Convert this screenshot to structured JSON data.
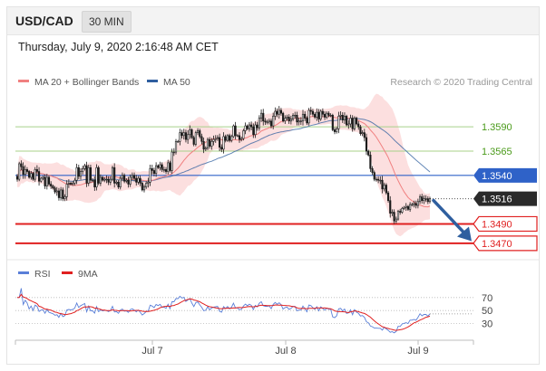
{
  "header": {
    "symbol": "USD/CAD",
    "interval": "30 MIN"
  },
  "datetime": "Thursday, July 9, 2020 2:16:48 AM CET",
  "legend": [
    {
      "label": "MA 20 + Bollinger Bands",
      "color": "#f08080"
    },
    {
      "label": "MA 50",
      "color": "#2f5f9f"
    }
  ],
  "credit": "Research © 2020 Trading Central",
  "levels": [
    {
      "value": 1.359,
      "label": "1.3590",
      "kind": "green",
      "color": "#4a9a1a",
      "line": "#a8d08a"
    },
    {
      "value": 1.3565,
      "label": "1.3565",
      "kind": "green",
      "color": "#4a9a1a",
      "line": "#a8d08a"
    },
    {
      "value": 1.354,
      "label": "1.3540",
      "kind": "blue",
      "color": "#2f62c8"
    },
    {
      "value": 1.3516,
      "label": "1.3516",
      "kind": "current",
      "color": "#2a2a2a"
    },
    {
      "value": 1.349,
      "label": "1.3490",
      "kind": "red",
      "color": "#e02020"
    },
    {
      "value": 1.347,
      "label": "1.3470",
      "kind": "red",
      "color": "#e02020"
    }
  ],
  "rsi_legend": [
    {
      "label": "RSI",
      "color": "#5a7fd8"
    },
    {
      "label": "9MA",
      "color": "#e02020"
    }
  ],
  "rsi_levels": [
    "70",
    "50",
    "30"
  ],
  "x_labels": [
    "Jul 7",
    "Jul 8",
    "Jul 9"
  ],
  "chart_data": {
    "type": "candlestick",
    "ylim": [
      1.3455,
      1.362
    ],
    "close": [
      1.3536,
      1.3552,
      1.3549,
      1.3541,
      1.3546,
      1.3544,
      1.3538,
      1.3542,
      1.3536,
      1.3546,
      1.3544,
      1.3534,
      1.3537,
      1.3538,
      1.3529,
      1.3538,
      1.3531,
      1.3529,
      1.3527,
      1.3523,
      1.3524,
      1.3517,
      1.3525,
      1.3516,
      1.3518,
      1.3531,
      1.3532,
      1.3531,
      1.3532,
      1.3535,
      1.3548,
      1.3539,
      1.3544,
      1.3547,
      1.355,
      1.3532,
      1.3548,
      1.3535,
      1.3535,
      1.3528,
      1.3548,
      1.3532,
      1.3538,
      1.3535,
      1.3536,
      1.3536,
      1.3533,
      1.3536,
      1.3548,
      1.3532,
      1.3533,
      1.3528,
      1.3537,
      1.354,
      1.3534,
      1.3535,
      1.3531,
      1.3538,
      1.354,
      1.3537,
      1.3533,
      1.3537,
      1.3532,
      1.3525,
      1.3528,
      1.3532,
      1.3533,
      1.3547,
      1.3545,
      1.3542,
      1.355,
      1.3548,
      1.3551,
      1.3546,
      1.3546,
      1.3544,
      1.3553,
      1.3545,
      1.3564,
      1.3564,
      1.3575,
      1.3575,
      1.3584,
      1.3581,
      1.3584,
      1.3577,
      1.3582,
      1.3587,
      1.3579,
      1.3572,
      1.3584,
      1.3586,
      1.358,
      1.3575,
      1.3567,
      1.3568,
      1.3577,
      1.357,
      1.3575,
      1.3577,
      1.3578,
      1.3579,
      1.3569,
      1.3567,
      1.358,
      1.3576,
      1.3581,
      1.3576,
      1.358,
      1.3591,
      1.3581,
      1.3581,
      1.3577,
      1.3578,
      1.3586,
      1.3591,
      1.3588,
      1.3592,
      1.359,
      1.3582,
      1.3592,
      1.3589,
      1.3599,
      1.3604,
      1.3596,
      1.3595,
      1.3595,
      1.3596,
      1.3591,
      1.3601,
      1.3606,
      1.3603,
      1.3607,
      1.3604,
      1.3596,
      1.3599,
      1.36,
      1.3596,
      1.3598,
      1.3602,
      1.3602,
      1.3595,
      1.3596,
      1.3596,
      1.3603,
      1.3599,
      1.3594,
      1.3607,
      1.3606,
      1.3603,
      1.36,
      1.3605,
      1.3598,
      1.3606,
      1.3603,
      1.36,
      1.3604,
      1.3602,
      1.3602,
      1.3587,
      1.3585,
      1.3588,
      1.3601,
      1.3602,
      1.3597,
      1.3601,
      1.3592,
      1.3593,
      1.3599,
      1.3588,
      1.3599,
      1.3593,
      1.359,
      1.3583,
      1.3584,
      1.3579,
      1.3565,
      1.3561,
      1.3547,
      1.3543,
      1.3536,
      1.3536,
      1.3535,
      1.3535,
      1.3526,
      1.353,
      1.3522,
      1.3514,
      1.3501,
      1.3502,
      1.3493,
      1.3495,
      1.3503,
      1.3502,
      1.3506,
      1.3507,
      1.3508,
      1.3505,
      1.351,
      1.351,
      1.3511,
      1.3509,
      1.3513,
      1.3518,
      1.3514,
      1.3516,
      1.3516,
      1.3513,
      1.3516
    ],
    "spread": [
      0.0005,
      0.0004,
      0.0007,
      0.0009,
      0.0009,
      0.0005,
      0.0003,
      0.0005,
      0.0003,
      0.0005,
      0.0009,
      0.0009,
      0.0003,
      0.0004,
      0.0006,
      0.0007,
      0.0004,
      0.0006,
      0.0003,
      0.0004,
      0.0008,
      0.0006,
      0.0006,
      0.0005,
      0.0005,
      0.0008,
      0.0008,
      0.0003,
      0.0004,
      0.0005,
      0.0008,
      0.0006,
      0.0007,
      0.0006,
      0.0004,
      0.0008,
      0.0006,
      0.0006,
      0.0004,
      0.0008,
      0.0007,
      0.0004,
      0.0006,
      0.0003,
      0.0004,
      0.0008,
      0.0006,
      0.0006,
      0.0004,
      0.0009,
      0.0004,
      0.0004,
      0.0005,
      0.0006,
      0.0004,
      0.0004,
      0.0007,
      0.0006,
      0.0006,
      0.0006,
      0.0007,
      0.0005,
      0.0006,
      0.0003,
      0.0005,
      0.0004,
      0.0009,
      0.0008,
      0.0008,
      0.0006,
      0.0007,
      0.0003,
      0.0006,
      0.0005,
      0.0006,
      0.0005,
      0.0006,
      0.0004,
      0.0007,
      0.0008,
      0.0005,
      0.0003,
      0.0008,
      0.0006,
      0.0008,
      0.0006,
      0.0009,
      0.0009,
      0.0003,
      0.0004,
      0.0004,
      0.0005,
      0.0004,
      0.0006,
      0.0008,
      0.0004,
      0.0004,
      0.0005,
      0.0007,
      0.0008,
      0.0007,
      0.0005,
      0.0008,
      0.0006,
      0.0009,
      0.0004,
      0.0003,
      0.0004,
      0.0004,
      0.0003,
      0.0008,
      0.0003,
      0.0007,
      0.0004,
      0.0004,
      0.0007,
      0.0003,
      0.0006,
      0.0007,
      0.0007,
      0.0007,
      0.0006,
      0.0006,
      0.0008,
      0.0009,
      0.0006,
      0.0005,
      0.0005,
      0.0005,
      0.0007,
      0.0008,
      0.0006,
      0.0009,
      0.0005,
      0.0003,
      0.0006,
      0.0005,
      0.0006,
      0.0007,
      0.0004,
      0.0007,
      0.0007,
      0.0007,
      0.0008,
      0.0009,
      0.0006,
      0.0004,
      0.0005,
      0.0007,
      0.0005,
      0.0004,
      0.0008,
      0.0007,
      0.0004,
      0.0006,
      0.0006,
      0.0004,
      0.0004,
      0.0004,
      0.0003,
      0.0005,
      0.0004,
      0.0009,
      0.0008,
      0.0006,
      0.0008,
      0.0003,
      0.0008,
      0.0007,
      0.0006,
      0.0004,
      0.0003,
      0.0006,
      0.0004,
      0.0005,
      0.0008,
      0.0008,
      0.0003,
      0.0007,
      0.0005,
      0.0004,
      0.0005,
      0.0006,
      0.0008,
      0.0009,
      0.0005,
      0.0004,
      0.0004,
      0.0009,
      0.0006,
      0.0006,
      0.0005,
      0.0003,
      0.0005,
      0.0003,
      0.0003,
      0.0007,
      0.0003,
      0.0005,
      0.0004,
      0.0006,
      0.0006,
      0.0006,
      0.0005,
      0.0006,
      0.0007,
      0.0007,
      0.0005,
      0.0004,
      0.0009,
      0.0007,
      0.0003
    ],
    "ma_window": 20,
    "ma_long_window": 50,
    "bollinger_k": 2,
    "rsi_window": 14,
    "rsi_ma_window": 9,
    "rsi_ylim": [
      10,
      85
    ],
    "projection": {
      "from": 1.3516,
      "to": 1.3475
    }
  }
}
